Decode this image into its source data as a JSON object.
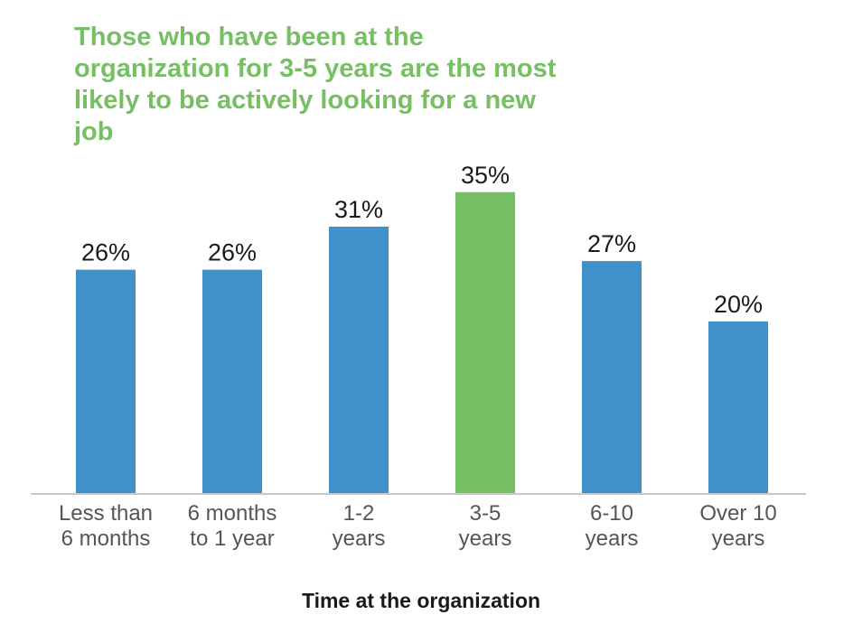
{
  "chart_data": {
    "type": "bar",
    "title": "Those who have been at the organization for 3-5 years are the most likely to be actively looking for a new job",
    "xlabel": "Time at the organization",
    "ylabel": "",
    "categories": [
      [
        "Less than",
        "6 months"
      ],
      [
        "6 months",
        "to 1 year"
      ],
      [
        "1-2",
        "years"
      ],
      [
        "3-5",
        "years"
      ],
      [
        "6-10",
        "years"
      ],
      [
        "Over 10",
        "years"
      ]
    ],
    "values": [
      26,
      26,
      31,
      35,
      27,
      20
    ],
    "value_labels": [
      "26%",
      "26%",
      "31%",
      "35%",
      "27%",
      "20%"
    ],
    "highlight_index": 3,
    "unit": "%",
    "ylim": [
      0,
      35
    ],
    "grid": false,
    "legend": "none",
    "colors": {
      "bar": "#4090c9",
      "highlight": "#77bf63",
      "title": "#77bf63",
      "axis": "#c8c8c8"
    }
  }
}
